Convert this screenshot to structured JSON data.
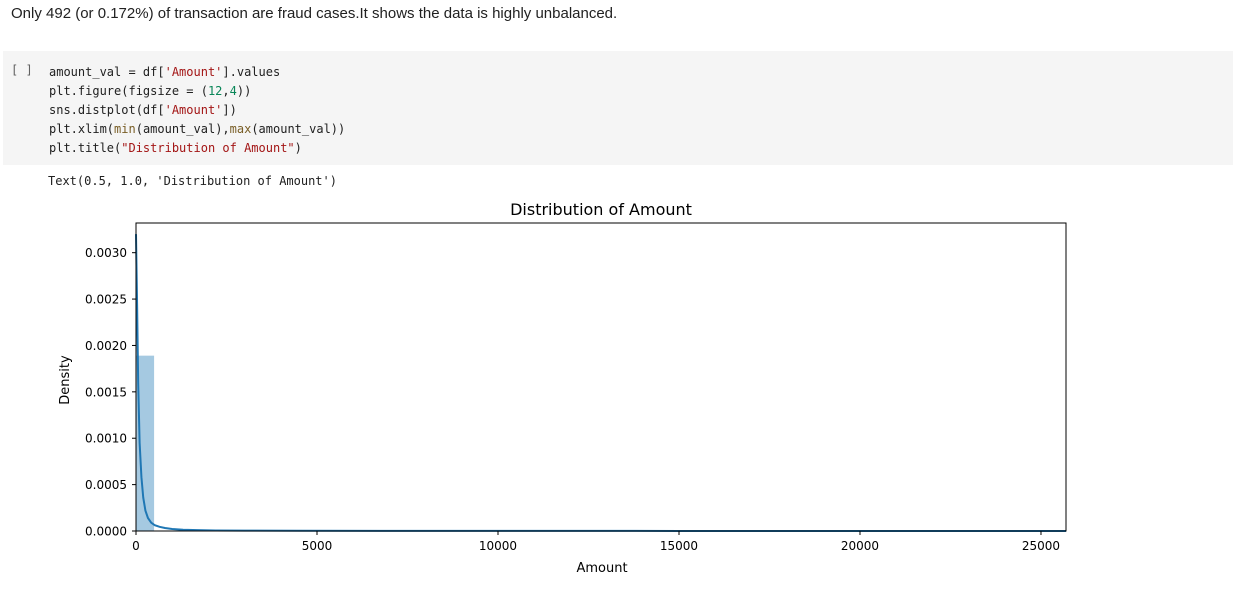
{
  "markdown": {
    "text": "Only 492 (or 0.172%) of transaction are fraud cases.It shows the data is highly unbalanced."
  },
  "code_cell": {
    "run_label": "[ ]",
    "lines": [
      [
        {
          "t": "amount_val = df[",
          "c": ""
        },
        {
          "t": "'Amount'",
          "c": "str"
        },
        {
          "t": "].values",
          "c": ""
        }
      ],
      [
        {
          "t": "plt.figure(figsize = (",
          "c": ""
        },
        {
          "t": "12",
          "c": "num"
        },
        {
          "t": ",",
          "c": ""
        },
        {
          "t": "4",
          "c": "num"
        },
        {
          "t": "))",
          "c": ""
        }
      ],
      [
        {
          "t": "sns.distplot(df[",
          "c": ""
        },
        {
          "t": "'Amount'",
          "c": "str"
        },
        {
          "t": "])",
          "c": ""
        }
      ],
      [
        {
          "t": "plt.xlim(",
          "c": ""
        },
        {
          "t": "min",
          "c": "fn"
        },
        {
          "t": "(amount_val),",
          "c": ""
        },
        {
          "t": "max",
          "c": "fn"
        },
        {
          "t": "(amount_val))",
          "c": ""
        }
      ],
      [
        {
          "t": "plt.title(",
          "c": ""
        },
        {
          "t": "\"Distribution of Amount\"",
          "c": "str"
        },
        {
          "t": ")",
          "c": ""
        }
      ]
    ],
    "output": "Text(0.5, 1.0, 'Distribution of Amount')"
  },
  "chart_data": {
    "type": "histogram",
    "title": "Distribution of Amount",
    "xlabel": "Amount",
    "ylabel": "Density",
    "xlim": [
      0,
      25691.16
    ],
    "ylim": [
      0,
      0.00332
    ],
    "xticks": [
      0,
      5000,
      10000,
      15000,
      20000,
      25000
    ],
    "xtick_labels": [
      "0",
      "5000",
      "10000",
      "15000",
      "20000",
      "25000"
    ],
    "yticks": [
      0,
      0.0005,
      0.001,
      0.0015,
      0.002,
      0.0025,
      0.003
    ],
    "ytick_labels": [
      "0.0000",
      "0.0005",
      "0.0010",
      "0.0015",
      "0.0020",
      "0.0025",
      "0.0030"
    ],
    "bars": [
      {
        "x0": 0,
        "x1": 500,
        "density": 0.00189
      }
    ],
    "kde": {
      "x": [
        0,
        30,
        60,
        100,
        150,
        200,
        260,
        330,
        420,
        520,
        650,
        800,
        1000,
        1300,
        1700,
        2200,
        3000,
        4500,
        7000,
        10000,
        15000,
        20000,
        25691
      ],
      "y": [
        0.0032,
        0.00245,
        0.0016,
        0.00095,
        0.00058,
        0.00036,
        0.00022,
        0.00014,
        9e-05,
        6.2e-05,
        4.5e-05,
        3.2e-05,
        2.2e-05,
        1.4e-05,
        9e-06,
        6e-06,
        4e-06,
        2.5e-06,
        1.5e-06,
        1e-06,
        6e-07,
        4e-07,
        3e-07
      ]
    },
    "colors": {
      "bar": "#1f77b4",
      "line": "#1f77b4"
    }
  }
}
